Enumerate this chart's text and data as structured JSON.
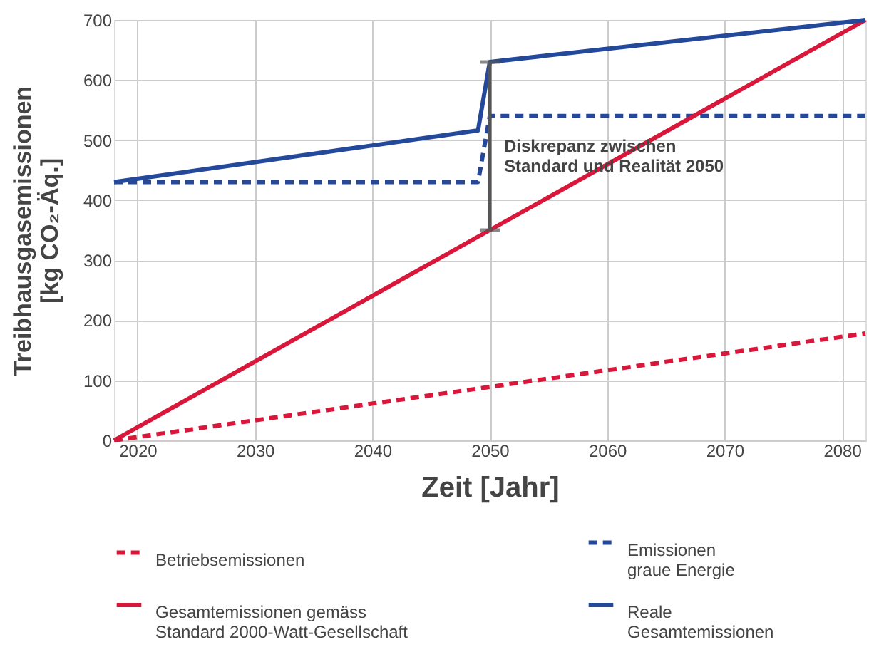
{
  "chart_data": {
    "type": "line",
    "xlabel": "Zeit [Jahr]",
    "ylabel": "Treibhausgasemissionen\n[kg CO₂-Äq.]",
    "xlim": [
      2018,
      2082
    ],
    "xticks": [
      2020,
      2030,
      2040,
      2050,
      2060,
      2070,
      2080
    ],
    "ylim": [
      0,
      700
    ],
    "yticks": [
      0,
      100,
      200,
      300,
      400,
      500,
      600,
      700
    ],
    "grid": true,
    "legend": "bottom",
    "series": [
      {
        "name": "Betriebsemissionen",
        "color": "#d9173a",
        "line_style": "dashed",
        "x": [
          2018,
          2082
        ],
        "values": [
          0,
          178
        ]
      },
      {
        "name": "Emissionen\ngraue Energie",
        "color": "#24489a",
        "line_style": "dashed",
        "x": [
          2018,
          2049,
          2050,
          2082
        ],
        "values": [
          430,
          430,
          540,
          540
        ]
      },
      {
        "name": "Gesamtemissionen gemäss\nStandard 2000-Watt-Gesellschaft",
        "color": "#d9173a",
        "line_style": "solid",
        "x": [
          2018,
          2050,
          2082
        ],
        "values": [
          0,
          350,
          700
        ]
      },
      {
        "name": "Reale\nGesamtemissionen",
        "color": "#24489a",
        "line_style": "solid",
        "x": [
          2018,
          2049,
          2050,
          2082
        ],
        "values": [
          430,
          516,
          630,
          700
        ]
      }
    ],
    "annotations": [
      {
        "text": "Diskrepanz zwischen\nStandard und Realität 2050",
        "x": 2050,
        "y": 490
      }
    ]
  }
}
